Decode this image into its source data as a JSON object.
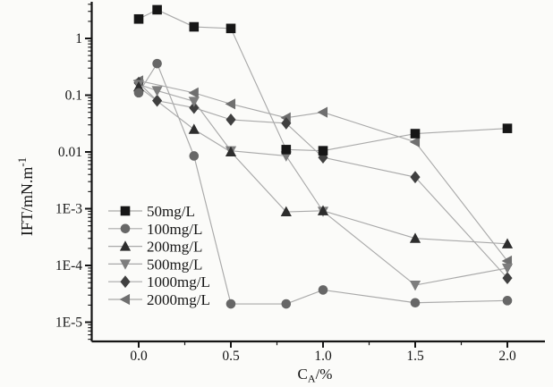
{
  "figure": {
    "background": "#fbfbf9",
    "ink_color": "#151515"
  },
  "chart_data": {
    "type": "line-scatter",
    "title": "",
    "xlabel": {
      "base": "C",
      "sub": "A",
      "rest": "/%"
    },
    "ylabel": {
      "base": "IFT/mN.m",
      "sup": "-1"
    },
    "grid": false,
    "legend_position": "lower-left",
    "line_color": "#a9a9a9",
    "x_axis": {
      "scale": "linear",
      "min": -0.25,
      "max": 2.2,
      "minor_step": 0.25,
      "ticks": [
        {
          "label": "0.0",
          "value": 0.0
        },
        {
          "label": "0.5",
          "value": 0.5
        },
        {
          "label": "1.0",
          "value": 1.0
        },
        {
          "label": "1.5",
          "value": 1.5
        },
        {
          "label": "2.0",
          "value": 2.0
        }
      ]
    },
    "y_axis": {
      "scale": "log",
      "min": 4.7e-06,
      "max": 4.4,
      "ticks": [
        {
          "label": "1",
          "value": 1
        },
        {
          "label": "0.1",
          "value": 0.1
        },
        {
          "label": "0.01",
          "value": 0.01
        },
        {
          "label": "1E-3",
          "value": 0.001
        },
        {
          "label": "1E-4",
          "value": 0.0001
        },
        {
          "label": "1E-5",
          "value": 1e-05
        }
      ]
    },
    "series": [
      {
        "name": "50mg/L",
        "marker": "square",
        "color": "#161616",
        "x": [
          0,
          0.1,
          0.3,
          0.5,
          0.8,
          1.0,
          1.5,
          2.0
        ],
        "y": [
          2.2,
          3.2,
          1.6,
          1.5,
          0.011,
          0.0105,
          0.021,
          0.026
        ]
      },
      {
        "name": "100mg/L",
        "marker": "circle",
        "color": "#676767",
        "x": [
          0,
          0.1,
          0.3,
          0.5,
          0.8,
          1.0,
          1.5,
          2.0
        ],
        "y": [
          0.11,
          0.36,
          0.0085,
          2.1e-05,
          2.1e-05,
          3.7e-05,
          2.2e-05,
          2.4e-05
        ]
      },
      {
        "name": "200mg/L",
        "marker": "triangle-up",
        "color": "#2d2d2d",
        "x": [
          0,
          0.3,
          0.5,
          0.8,
          1.0,
          1.5,
          2.0
        ],
        "y": [
          0.14,
          0.025,
          0.01,
          0.00088,
          0.00092,
          0.0003,
          0.00024
        ]
      },
      {
        "name": "500mg/L",
        "marker": "triangle-down",
        "color": "#7d7d7d",
        "x": [
          0,
          0.1,
          0.3,
          0.5,
          0.8,
          1.0,
          1.5,
          2.0
        ],
        "y": [
          0.155,
          0.12,
          0.078,
          0.0105,
          0.0085,
          0.0009,
          4.5e-05,
          9e-05
        ]
      },
      {
        "name": "1000mg/L",
        "marker": "diamond",
        "color": "#404040",
        "x": [
          0,
          0.1,
          0.3,
          0.5,
          0.8,
          1.0,
          1.5,
          2.0
        ],
        "y": [
          0.165,
          0.08,
          0.06,
          0.037,
          0.032,
          0.008,
          0.0036,
          6e-05
        ]
      },
      {
        "name": "2000mg/L",
        "marker": "triangle-left",
        "color": "#6f6f6f",
        "x": [
          0,
          0.3,
          0.5,
          0.8,
          1.0,
          1.5,
          2.0
        ],
        "y": [
          0.18,
          0.11,
          0.07,
          0.04,
          0.05,
          0.015,
          0.00012
        ]
      }
    ]
  }
}
